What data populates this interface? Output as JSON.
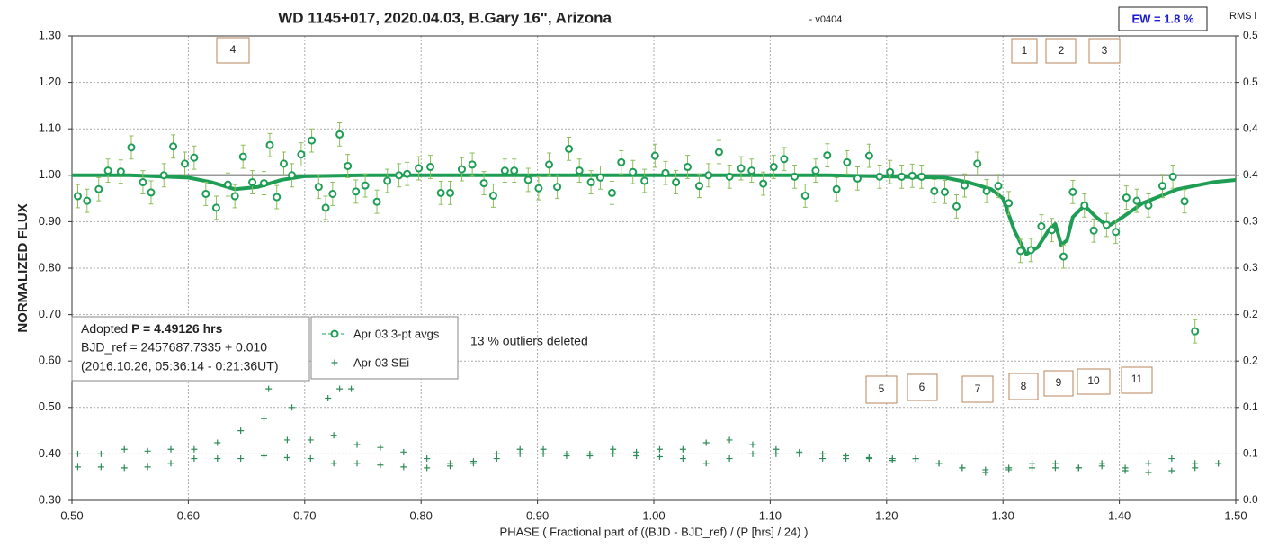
{
  "chart_data": {
    "type": "scatter",
    "title": "WD 1145+017, 2020.04.03, B.Gary 16\", Arizona",
    "subtitle": "- v0404",
    "ew": "EW = 1.8 %",
    "xlabel": "PHASE ( Fractional part of ((BJD - BJD_ref) / (P [hrs] / 24) )",
    "ylabel": "NORMALIZED FLUX",
    "y2label": "RMS i",
    "note": "13 % outliers deleted",
    "info": {
      "label": "Adopted",
      "period": "P = 4.49126 hrs",
      "ref": "BJD_ref = 2457687.7335 + 0.010",
      "dates": "(2016.10.26, 05:36:14 - 0:21:36UT)"
    },
    "markers": [
      "1",
      "2",
      "3",
      "4",
      "5",
      "6",
      "7",
      "8",
      "9",
      "10",
      "11"
    ],
    "grid": true,
    "reference": 1.0,
    "xlim": [
      0.5,
      1.5
    ],
    "ylim": [
      0.3,
      1.3
    ],
    "y2lim": [
      0,
      0.5
    ],
    "xticks": [
      {
        "value": 0.5,
        "label": "0.50"
      },
      {
        "value": 0.6,
        "label": "0.60"
      },
      {
        "value": 0.7,
        "label": "0.70"
      },
      {
        "value": 0.8,
        "label": "0.80"
      },
      {
        "value": 0.9,
        "label": "0.90"
      },
      {
        "value": 1.0,
        "label": "1.00"
      },
      {
        "value": 1.1,
        "label": "1.10"
      },
      {
        "value": 1.2,
        "label": "1.20"
      },
      {
        "value": 1.3,
        "label": "1.30"
      },
      {
        "value": 1.4,
        "label": "1.40"
      },
      {
        "value": 1.5,
        "label": "1.50"
      }
    ],
    "yticks": [
      {
        "value": 0.3,
        "label": "0.30"
      },
      {
        "value": 0.4,
        "label": "0.40"
      },
      {
        "value": 0.5,
        "label": "0.50"
      },
      {
        "value": 0.6,
        "label": "0.60"
      },
      {
        "value": 0.7,
        "label": "0.70"
      },
      {
        "value": 0.8,
        "label": "0.80"
      },
      {
        "value": 0.9,
        "label": "0.90"
      },
      {
        "value": 1.0,
        "label": "1.00"
      },
      {
        "value": 1.1,
        "label": "1.10"
      },
      {
        "value": 1.2,
        "label": "1.20"
      },
      {
        "value": 1.3,
        "label": "1.30"
      }
    ],
    "y2ticks": [
      {
        "value": 0,
        "label": "0.0"
      },
      {
        "value": 0.05,
        "label": "0.1"
      },
      {
        "value": 0.1,
        "label": "0.1"
      },
      {
        "value": 0.15,
        "label": "0.2"
      },
      {
        "value": 0.2,
        "label": "0.2"
      },
      {
        "value": 0.25,
        "label": "0.3"
      },
      {
        "value": 0.3,
        "label": "0.3"
      },
      {
        "value": 0.35,
        "label": "0.4"
      },
      {
        "value": 0.4,
        "label": "0.4"
      },
      {
        "value": 0.45,
        "label": "0.5"
      },
      {
        "value": 0.5,
        "label": "0.5"
      }
    ],
    "series": [
      {
        "name": "Apr 03 3-pt avgs",
        "color": "#1e9e55",
        "error_color": "#8cbf5a",
        "error": 0.025,
        "x": [
          0.505,
          0.513,
          0.523,
          0.531,
          0.542,
          0.551,
          0.561,
          0.568,
          0.579,
          0.587,
          0.597,
          0.605,
          0.615,
          0.624,
          0.634,
          0.64,
          0.647,
          0.655,
          0.665,
          0.67,
          0.676,
          0.682,
          0.689,
          0.697,
          0.706,
          0.712,
          0.718,
          0.724,
          0.73,
          0.737,
          0.744,
          0.752,
          0.762,
          0.771,
          0.781,
          0.788,
          0.798,
          0.808,
          0.817,
          0.825,
          0.835,
          0.844,
          0.854,
          0.862,
          0.872,
          0.88,
          0.892,
          0.901,
          0.91,
          0.917,
          0.927,
          0.936,
          0.946,
          0.954,
          0.964,
          0.972,
          0.982,
          0.992,
          1.001,
          1.01,
          1.019,
          1.029,
          1.039,
          1.047,
          1.056,
          1.065,
          1.075,
          1.084,
          1.094,
          1.103,
          1.112,
          1.121,
          1.13,
          1.139,
          1.149,
          1.157,
          1.166,
          1.175,
          1.185,
          1.194,
          1.203,
          1.213,
          1.222,
          1.23,
          1.241,
          1.25,
          1.26,
          1.267,
          1.278,
          1.286,
          1.296,
          1.305,
          1.315,
          1.324,
          1.333,
          1.342,
          1.352,
          1.36,
          1.37,
          1.378,
          1.389,
          1.397,
          1.406,
          1.415,
          1.425,
          1.437,
          1.446,
          1.456,
          1.465
        ],
        "values": [
          0.955,
          0.945,
          0.97,
          1.01,
          1.008,
          1.06,
          0.985,
          0.963,
          1.0,
          1.062,
          1.025,
          1.038,
          0.96,
          0.93,
          0.98,
          0.955,
          1.04,
          0.985,
          0.983,
          1.065,
          0.953,
          1.025,
          1.0,
          1.045,
          1.075,
          0.975,
          0.93,
          0.96,
          1.088,
          1.02,
          0.965,
          0.978,
          0.943,
          0.988,
          1.0,
          1.003,
          1.015,
          1.018,
          0.962,
          0.962,
          1.013,
          1.023,
          0.983,
          0.956,
          1.01,
          1.01,
          0.99,
          0.972,
          1.023,
          0.975,
          1.057,
          1.01,
          0.985,
          0.995,
          0.962,
          1.028,
          1.007,
          0.988,
          1.042,
          1.005,
          0.985,
          1.018,
          0.977,
          1.0,
          1.05,
          0.997,
          1.015,
          1.01,
          0.982,
          1.018,
          1.035,
          0.997,
          0.956,
          1.01,
          1.043,
          0.97,
          1.028,
          0.993,
          1.042,
          0.997,
          1.007,
          0.997,
          0.999,
          0.997,
          0.966,
          0.964,
          0.933,
          0.978,
          1.025,
          0.966,
          0.977,
          0.94,
          0.837,
          0.839,
          0.89,
          0.882,
          0.825,
          0.964,
          0.935,
          0.881,
          0.893,
          0.878,
          0.952,
          0.945,
          0.935,
          0.977,
          0.997,
          0.944,
          0.664
        ]
      },
      {
        "name": "Apr 03 SEi",
        "color": "#2e8b57",
        "axis": "y2",
        "x": [
          0.505,
          0.525,
          0.545,
          0.565,
          0.585,
          0.605,
          0.625,
          0.645,
          0.665,
          0.685,
          0.705,
          0.725,
          0.745,
          0.765,
          0.785,
          0.805,
          0.825,
          0.845,
          0.865,
          0.885,
          0.905,
          0.925,
          0.945,
          0.965,
          0.985,
          1.005,
          1.025,
          1.045,
          1.065,
          1.085,
          1.105,
          1.125,
          1.145,
          1.165,
          1.185,
          1.205,
          1.225,
          1.245,
          1.265,
          1.285,
          1.305,
          1.325,
          1.345,
          1.365,
          1.385,
          1.405,
          1.425,
          1.445,
          1.465,
          1.485,
          0.505,
          0.525,
          0.545,
          0.565,
          0.585,
          0.605,
          0.625,
          0.645,
          0.665,
          0.685,
          0.705,
          0.725,
          0.745,
          0.765,
          0.785,
          0.805,
          0.825,
          0.845,
          0.865,
          0.885,
          0.905,
          0.925,
          0.945,
          0.965,
          0.985,
          1.005,
          1.025,
          1.045,
          1.065,
          1.085,
          1.105,
          1.125,
          1.145,
          1.165,
          1.185,
          1.205,
          1.225,
          1.245,
          1.265,
          1.285,
          1.305,
          1.325,
          1.345,
          1.365,
          1.385,
          1.405,
          1.425,
          1.445,
          1.465,
          1.485,
          0.669,
          0.689,
          0.72,
          0.73,
          0.74
        ],
        "values": [
          0.036,
          0.036,
          0.035,
          0.036,
          0.04,
          0.045,
          0.045,
          0.045,
          0.048,
          0.046,
          0.045,
          0.04,
          0.04,
          0.038,
          0.036,
          0.035,
          0.037,
          0.04,
          0.045,
          0.05,
          0.05,
          0.048,
          0.048,
          0.05,
          0.048,
          0.047,
          0.045,
          0.04,
          0.045,
          0.05,
          0.055,
          0.052,
          0.05,
          0.048,
          0.046,
          0.045,
          0.045,
          0.04,
          0.035,
          0.033,
          0.033,
          0.035,
          0.035,
          0.035,
          0.037,
          0.032,
          0.03,
          0.032,
          0.035,
          0.04,
          0.05,
          0.05,
          0.055,
          0.053,
          0.055,
          0.055,
          0.062,
          0.075,
          0.088,
          0.065,
          0.065,
          0.07,
          0.06,
          0.057,
          0.052,
          0.045,
          0.04,
          0.042,
          0.05,
          0.055,
          0.055,
          0.05,
          0.05,
          0.055,
          0.052,
          0.055,
          0.055,
          0.062,
          0.065,
          0.06,
          0.05,
          0.05,
          0.045,
          0.045,
          0.045,
          0.043,
          0.045,
          0.04,
          0.035,
          0.03,
          0.035,
          0.04,
          0.04,
          0.035,
          0.04,
          0.035,
          0.04,
          0.045,
          0.04,
          0.04,
          0.12,
          0.1,
          0.11,
          0.12,
          0.12
        ]
      }
    ],
    "model": {
      "color": "#1e9e55",
      "x": [
        0.5,
        0.55,
        0.6,
        0.62,
        0.64,
        0.66,
        0.68,
        0.7,
        0.75,
        0.85,
        0.95,
        1.05,
        1.15,
        1.25,
        1.27,
        1.29,
        1.3,
        1.31,
        1.32,
        1.33,
        1.34,
        1.345,
        1.35,
        1.355,
        1.36,
        1.37,
        1.38,
        1.39,
        1.4,
        1.42,
        1.45,
        1.48,
        1.5
      ],
      "values": [
        1.0,
        1.0,
        0.995,
        0.985,
        0.97,
        0.975,
        0.99,
        0.998,
        1.0,
        1.0,
        1.0,
        1.0,
        1.0,
        0.995,
        0.985,
        0.97,
        0.95,
        0.88,
        0.83,
        0.845,
        0.885,
        0.895,
        0.85,
        0.86,
        0.91,
        0.935,
        0.91,
        0.89,
        0.905,
        0.94,
        0.97,
        0.985,
        0.99
      ]
    }
  }
}
